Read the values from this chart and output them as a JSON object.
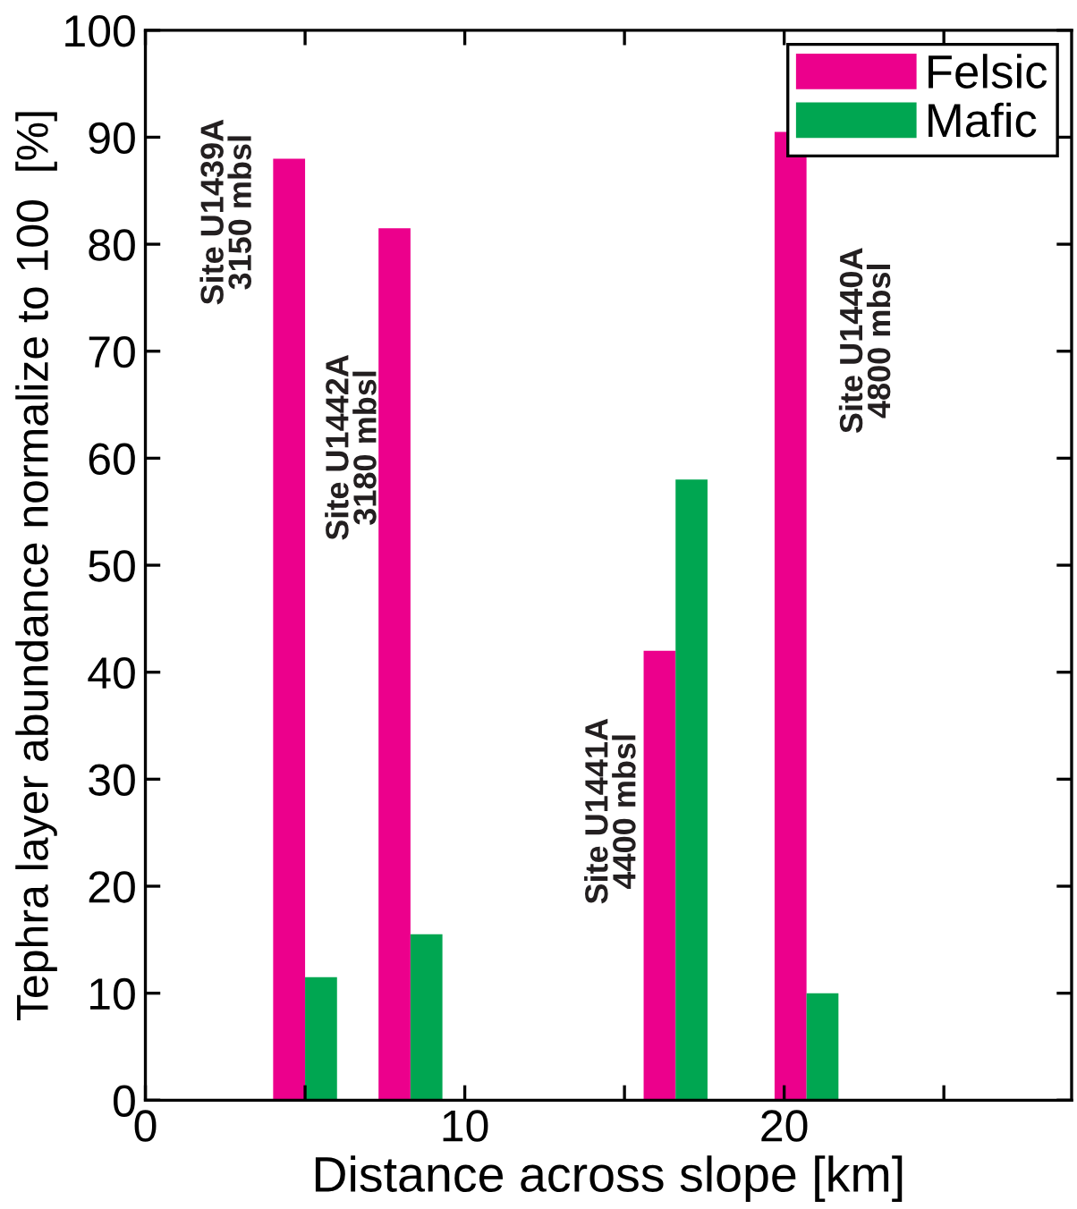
{
  "chart_data": {
    "type": "bar",
    "xlabel": "Distance across slope [km]",
    "ylabel": "Tephra layer abundance normalize to 100  [%]",
    "series": [
      {
        "name": "Felsic",
        "color": "#ec008c",
        "x": [
          4.5,
          7.8,
          16.1,
          20.2
        ],
        "values": [
          88,
          81.5,
          42,
          90.5
        ]
      },
      {
        "name": "Mafic",
        "color": "#00a651",
        "x": [
          5.5,
          8.8,
          17.1,
          21.2
        ],
        "values": [
          11.5,
          15.5,
          58,
          10
        ]
      }
    ],
    "xlim": [
      0,
      29
    ],
    "xticks": [
      0,
      {
        "value": 5,
        "label": null
      },
      10,
      {
        "value": 15,
        "label": null
      },
      20,
      {
        "value": 25,
        "label": null
      }
    ],
    "ylim": [
      0,
      100
    ],
    "yticks": [
      0,
      10,
      20,
      30,
      40,
      50,
      60,
      70,
      80,
      90,
      100
    ],
    "annotations": [
      "Site U1439A\n3150 mbsl",
      "Site U1442A\n3180 mbsl",
      "Site U1441A\n4400 mbsl",
      "Site U1440A\n4800 mbsl"
    ],
    "grid": false,
    "legend": "top right"
  }
}
